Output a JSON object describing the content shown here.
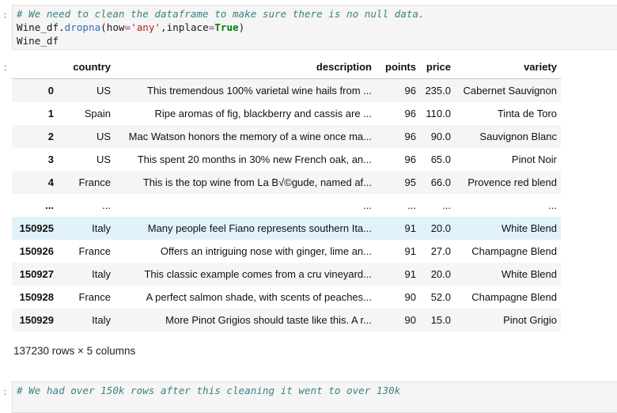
{
  "gutter_mark": ":",
  "code_cell_1": {
    "comment": "# We need to clean the dataframe to make sure there is no null data.",
    "line2": {
      "var": "Wine_df",
      "dot": ".",
      "method": "dropna",
      "open": "(",
      "arg1_name": "how",
      "eq1": "=",
      "arg1_value": "'any'",
      "comma": ",",
      "arg2_name": "inplace",
      "eq2": "=",
      "arg2_value": "True",
      "close": ")"
    },
    "line3": "Wine_df"
  },
  "dataframe": {
    "columns": [
      "",
      "country",
      "description",
      "points",
      "price",
      "variety"
    ],
    "rows": [
      {
        "index": "0",
        "country": "US",
        "description": "This tremendous 100% varietal wine hails from ...",
        "points": "96",
        "price": "235.0",
        "variety": "Cabernet Sauvignon"
      },
      {
        "index": "1",
        "country": "Spain",
        "description": "Ripe aromas of fig, blackberry and cassis are ...",
        "points": "96",
        "price": "110.0",
        "variety": "Tinta de Toro"
      },
      {
        "index": "2",
        "country": "US",
        "description": "Mac Watson honors the memory of a wine once ma...",
        "points": "96",
        "price": "90.0",
        "variety": "Sauvignon Blanc"
      },
      {
        "index": "3",
        "country": "US",
        "description": "This spent 20 months in 30% new French oak, an...",
        "points": "96",
        "price": "65.0",
        "variety": "Pinot Noir"
      },
      {
        "index": "4",
        "country": "France",
        "description": "This is the top wine from La B√©gude, named af...",
        "points": "95",
        "price": "66.0",
        "variety": "Provence red blend"
      },
      {
        "index": "...",
        "country": "...",
        "description": "...",
        "points": "...",
        "price": "...",
        "variety": "..."
      },
      {
        "index": "150925",
        "country": "Italy",
        "description": "Many people feel Fiano represents southern Ita...",
        "points": "91",
        "price": "20.0",
        "variety": "White Blend"
      },
      {
        "index": "150926",
        "country": "France",
        "description": "Offers an intriguing nose with ginger, lime an...",
        "points": "91",
        "price": "27.0",
        "variety": "Champagne Blend"
      },
      {
        "index": "150927",
        "country": "Italy",
        "description": "This classic example comes from a cru vineyard...",
        "points": "91",
        "price": "20.0",
        "variety": "White Blend"
      },
      {
        "index": "150928",
        "country": "France",
        "description": "A perfect salmon shade, with scents of peaches...",
        "points": "90",
        "price": "52.0",
        "variety": "Champagne Blend"
      },
      {
        "index": "150929",
        "country": "Italy",
        "description": "More Pinot Grigios should taste like this. A r...",
        "points": "90",
        "price": "15.0",
        "variety": "Pinot Grigio"
      }
    ],
    "shape_text": "137230 rows × 5 columns"
  },
  "code_cell_2": {
    "comment": "# We had over 150k rows after this cleaning it went to over 130k"
  }
}
